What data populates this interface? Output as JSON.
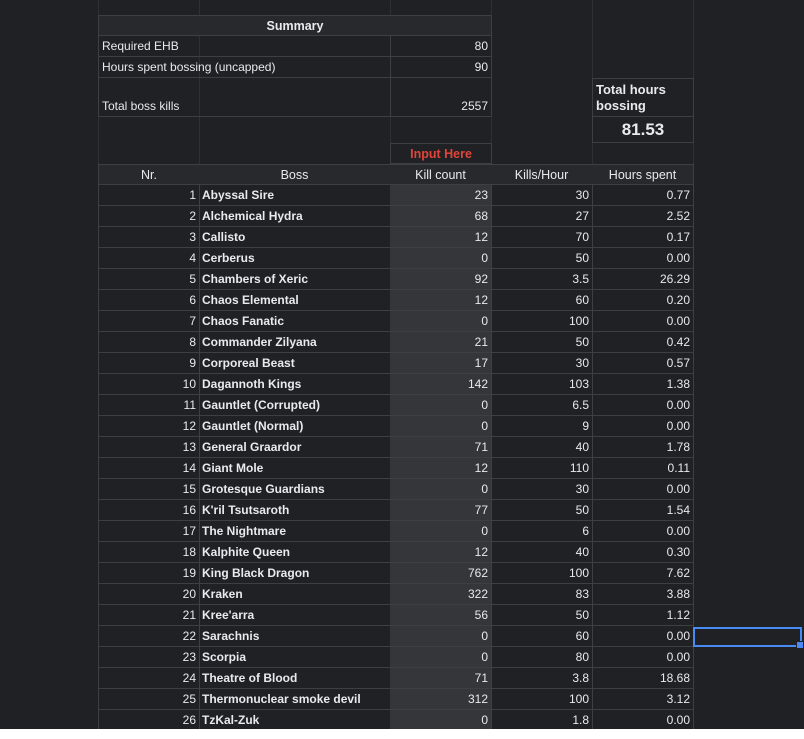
{
  "summary": {
    "title": "Summary",
    "rows": [
      {
        "label": "Required EHB",
        "value": "80"
      },
      {
        "label": "Hours spent bossing (uncapped)",
        "value": "90"
      },
      {
        "label": "Total boss kills",
        "value": "2557"
      }
    ]
  },
  "total": {
    "label": "Total hours bossing",
    "value": "81.53"
  },
  "input_hint": "Input Here",
  "columns": [
    "Nr.",
    "Boss",
    "Kill count",
    "Kills/Hour",
    "Hours spent"
  ],
  "rows": [
    {
      "nr": "1",
      "boss": "Abyssal Sire",
      "kc": "23",
      "kph": "30",
      "hrs": "0.77"
    },
    {
      "nr": "2",
      "boss": "Alchemical Hydra",
      "kc": "68",
      "kph": "27",
      "hrs": "2.52"
    },
    {
      "nr": "3",
      "boss": "Callisto",
      "kc": "12",
      "kph": "70",
      "hrs": "0.17"
    },
    {
      "nr": "4",
      "boss": "Cerberus",
      "kc": "0",
      "kph": "50",
      "hrs": "0.00"
    },
    {
      "nr": "5",
      "boss": "Chambers of Xeric",
      "kc": "92",
      "kph": "3.5",
      "hrs": "26.29"
    },
    {
      "nr": "6",
      "boss": "Chaos Elemental",
      "kc": "12",
      "kph": "60",
      "hrs": "0.20"
    },
    {
      "nr": "7",
      "boss": "Chaos Fanatic",
      "kc": "0",
      "kph": "100",
      "hrs": "0.00"
    },
    {
      "nr": "8",
      "boss": "Commander Zilyana",
      "kc": "21",
      "kph": "50",
      "hrs": "0.42"
    },
    {
      "nr": "9",
      "boss": "Corporeal Beast",
      "kc": "17",
      "kph": "30",
      "hrs": "0.57"
    },
    {
      "nr": "10",
      "boss": "Dagannoth Kings",
      "kc": "142",
      "kph": "103",
      "hrs": "1.38"
    },
    {
      "nr": "11",
      "boss": "Gauntlet (Corrupted)",
      "kc": "0",
      "kph": "6.5",
      "hrs": "0.00"
    },
    {
      "nr": "12",
      "boss": "Gauntlet (Normal)",
      "kc": "0",
      "kph": "9",
      "hrs": "0.00"
    },
    {
      "nr": "13",
      "boss": "General Graardor",
      "kc": "71",
      "kph": "40",
      "hrs": "1.78"
    },
    {
      "nr": "14",
      "boss": "Giant Mole",
      "kc": "12",
      "kph": "110",
      "hrs": "0.11"
    },
    {
      "nr": "15",
      "boss": "Grotesque Guardians",
      "kc": "0",
      "kph": "30",
      "hrs": "0.00"
    },
    {
      "nr": "16",
      "boss": "K'ril Tsutsaroth",
      "kc": "77",
      "kph": "50",
      "hrs": "1.54"
    },
    {
      "nr": "17",
      "boss": "The Nightmare",
      "kc": "0",
      "kph": "6",
      "hrs": "0.00"
    },
    {
      "nr": "18",
      "boss": "Kalphite Queen",
      "kc": "12",
      "kph": "40",
      "hrs": "0.30"
    },
    {
      "nr": "19",
      "boss": "King Black Dragon",
      "kc": "762",
      "kph": "100",
      "hrs": "7.62"
    },
    {
      "nr": "20",
      "boss": "Kraken",
      "kc": "322",
      "kph": "83",
      "hrs": "3.88"
    },
    {
      "nr": "21",
      "boss": "Kree'arra",
      "kc": "56",
      "kph": "50",
      "hrs": "1.12"
    },
    {
      "nr": "22",
      "boss": "Sarachnis",
      "kc": "0",
      "kph": "60",
      "hrs": "0.00"
    },
    {
      "nr": "23",
      "boss": "Scorpia",
      "kc": "0",
      "kph": "80",
      "hrs": "0.00"
    },
    {
      "nr": "24",
      "boss": "Theatre of Blood",
      "kc": "71",
      "kph": "3.8",
      "hrs": "18.68"
    },
    {
      "nr": "25",
      "boss": "Thermonuclear smoke devil",
      "kc": "312",
      "kph": "100",
      "hrs": "3.12"
    },
    {
      "nr": "26",
      "boss": "TzKal-Zuk",
      "kc": "0",
      "kph": "1.8",
      "hrs": "0.00"
    }
  ],
  "colors": {
    "background": "#202124",
    "input_cell": "#35363a",
    "input_hint": "#e0453a",
    "selection": "#4a8af4"
  }
}
